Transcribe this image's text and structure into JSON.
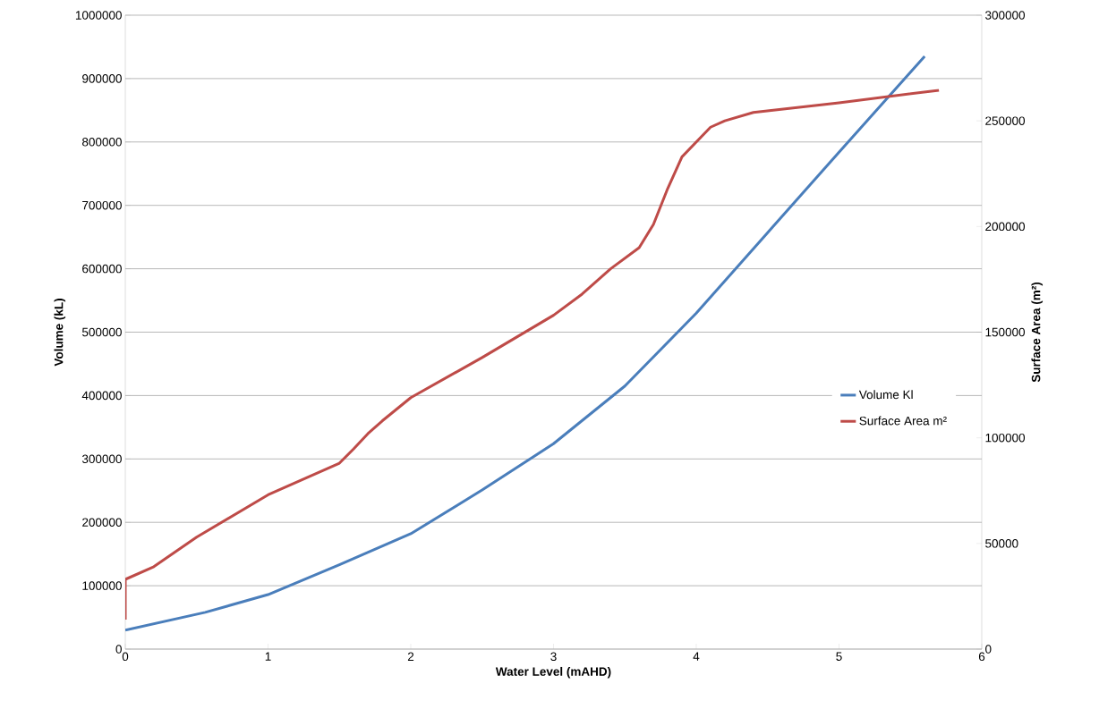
{
  "chart_data": {
    "type": "line",
    "xlabel": "Water Level (mAHD)",
    "ylabel": "Volume (kL)",
    "y2label": "Surface Area (m²)",
    "xlim": [
      0,
      6
    ],
    "xticks": [
      0,
      1,
      2,
      3,
      4,
      5,
      6
    ],
    "ylim": [
      0,
      1000000
    ],
    "yticks": [
      0,
      100000,
      200000,
      300000,
      400000,
      500000,
      600000,
      700000,
      800000,
      900000,
      1000000
    ],
    "y2lim": [
      0,
      300000
    ],
    "y2ticks": [
      0,
      50000,
      100000,
      150000,
      200000,
      250000,
      300000
    ],
    "grid": "y",
    "legend": "right",
    "marker": "none",
    "line_style": "solid",
    "series": [
      {
        "name": "Volume Kl",
        "color": "#4a7ebb",
        "x": [
          0,
          0.56,
          1,
          1.5,
          2,
          2.5,
          3,
          3.5,
          4,
          4.5,
          5,
          5.6
        ],
        "values": [
          30000,
          58000,
          86000,
          133000,
          182000,
          251000,
          324000,
          415000,
          530000,
          657000,
          784000,
          935000
        ]
      },
      {
        "name": "Surface Area m²",
        "color": "#be4b48",
        "axis": "y2",
        "x": [
          0,
          0,
          0.2,
          0.5,
          1,
          1.5,
          1.6,
          1.7,
          1.8,
          2,
          2.5,
          3,
          3.2,
          3.4,
          3.6,
          3.7,
          3.8,
          3.9,
          4.1,
          4.2,
          4.4,
          5,
          5.7
        ],
        "values": [
          14000,
          33000,
          39000,
          53000,
          73000,
          88000,
          94800,
          102000,
          108000,
          119000,
          138000,
          158000,
          168000,
          180000,
          190000,
          201000,
          218000,
          233000,
          247000,
          250000,
          254000,
          258500,
          264500
        ]
      }
    ]
  }
}
